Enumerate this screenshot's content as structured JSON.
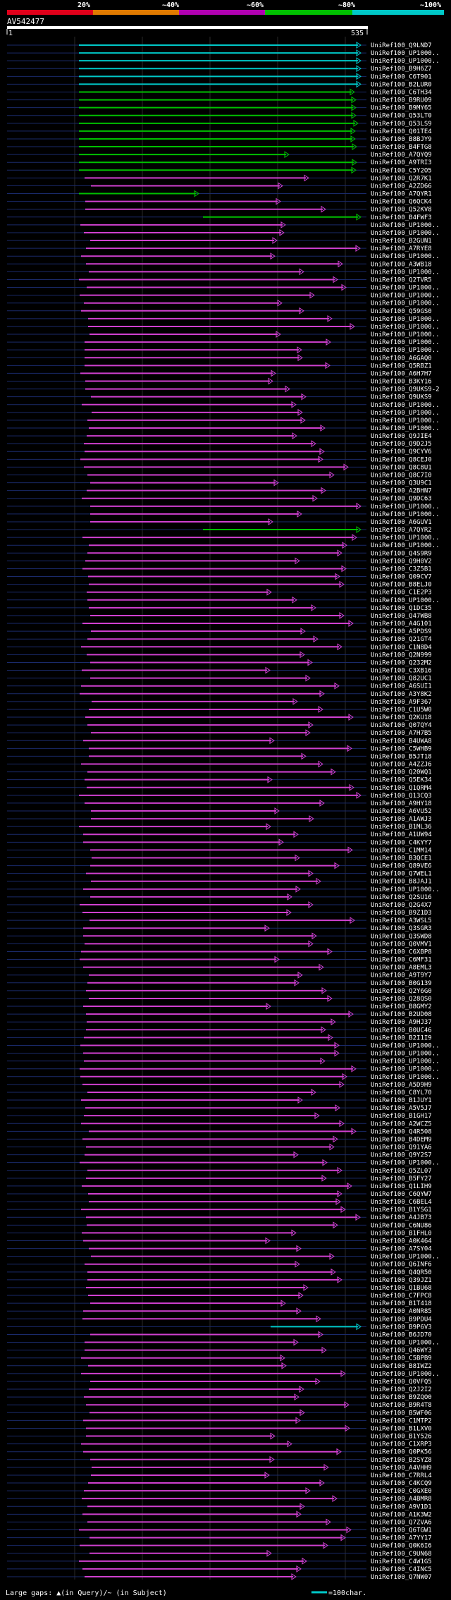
{
  "legend": {
    "thresholds": [
      "20%",
      "~40%",
      "~60%",
      "~80%",
      "~100%"
    ],
    "colors": [
      "#e0001a",
      "#e07a00",
      "#b000b0",
      "#00c000",
      "#00c8c8"
    ]
  },
  "query": {
    "id": "AV542477",
    "start": "1",
    "end": "535"
  },
  "footer": {
    "gaps_text": "Large gaps: ▲(in Query)/~ (in Subject)",
    "scale_text": "=100char."
  },
  "hit_colors": {
    "cyan": "#00c8c8",
    "green": "#00c000",
    "magenta": "#d040d0"
  },
  "hits": [
    {
      "label": "UniRef100_Q9LND7",
      "color": "cyan"
    },
    {
      "label": "UniRef100_UP1000..",
      "color": "cyan"
    },
    {
      "label": "UniRef100_UP1000..",
      "color": "cyan"
    },
    {
      "label": "UniRef100_B9H6Z7",
      "color": "cyan"
    },
    {
      "label": "UniRef100_C6T901",
      "color": "cyan"
    },
    {
      "label": "UniRef100_B2LUR0",
      "color": "cyan"
    },
    {
      "label": "UniRef100_C6TH34",
      "color": "green"
    },
    {
      "label": "UniRef100_B9RU09",
      "color": "green"
    },
    {
      "label": "UniRef100_B9MY65",
      "color": "green"
    },
    {
      "label": "UniRef100_Q53LT0",
      "color": "green"
    },
    {
      "label": "UniRef100_Q53LS9",
      "color": "green"
    },
    {
      "label": "UniRef100_Q01TE4",
      "color": "green"
    },
    {
      "label": "UniRef100_B8BJY9",
      "color": "green"
    },
    {
      "label": "UniRef100_B4FTG8",
      "color": "green"
    },
    {
      "label": "UniRef100_A7QYQ9",
      "color": "green"
    },
    {
      "label": "UniRef100_A9TRI3",
      "color": "green"
    },
    {
      "label": "UniRef100_C5Y2O5",
      "color": "green"
    },
    {
      "label": "UniRef100_Q2R7K1",
      "color": "magenta"
    },
    {
      "label": "UniRef100_A2ZD66",
      "color": "magenta"
    },
    {
      "label": "UniRef100_A7QYR1",
      "color": "green"
    },
    {
      "label": "UniRef100_Q6QCK4",
      "color": "magenta"
    },
    {
      "label": "UniRef100_Q52KV8",
      "color": "magenta"
    },
    {
      "label": "UniRef100_B4FWF3",
      "color": "green"
    },
    {
      "label": "UniRef100_UP1000..",
      "color": "magenta"
    },
    {
      "label": "UniRef100_UP1000..",
      "color": "magenta"
    },
    {
      "label": "UniRef100_B2GUN1",
      "color": "magenta"
    },
    {
      "label": "UniRef100_A7RYE8",
      "color": "magenta"
    },
    {
      "label": "UniRef100_UP1000..",
      "color": "magenta"
    },
    {
      "label": "UniRef100_A3WB18",
      "color": "magenta"
    },
    {
      "label": "UniRef100_UP1000..",
      "color": "magenta"
    },
    {
      "label": "UniRef100_Q2TVR5",
      "color": "magenta"
    },
    {
      "label": "UniRef100_UP1000..",
      "color": "magenta"
    },
    {
      "label": "UniRef100_UP1000..",
      "color": "magenta"
    },
    {
      "label": "UniRef100_UP1000..",
      "color": "magenta"
    },
    {
      "label": "UniRef100_Q59GS0",
      "color": "magenta"
    },
    {
      "label": "UniRef100_UP1000..",
      "color": "magenta"
    },
    {
      "label": "UniRef100_UP1000..",
      "color": "magenta"
    },
    {
      "label": "UniRef100_UP1000..",
      "color": "magenta"
    },
    {
      "label": "UniRef100_UP1000..",
      "color": "magenta"
    },
    {
      "label": "UniRef100_UP1000..",
      "color": "magenta"
    },
    {
      "label": "UniRef100_A6GAQ0",
      "color": "magenta"
    },
    {
      "label": "UniRef100_Q5RBZ1",
      "color": "magenta"
    },
    {
      "label": "UniRef100_A6H7H7",
      "color": "magenta"
    },
    {
      "label": "UniRef100_B3KY16",
      "color": "magenta"
    },
    {
      "label": "UniRef100_Q9UKS9-2",
      "color": "magenta"
    },
    {
      "label": "UniRef100_Q9UKS9",
      "color": "magenta"
    },
    {
      "label": "UniRef100_UP1000..",
      "color": "magenta"
    },
    {
      "label": "UniRef100_UP1000..",
      "color": "magenta"
    },
    {
      "label": "UniRef100_UP1000..",
      "color": "magenta"
    },
    {
      "label": "UniRef100_UP1000..",
      "color": "magenta"
    },
    {
      "label": "UniRef100_Q9JIE4",
      "color": "magenta"
    },
    {
      "label": "UniRef100_Q9D2J5",
      "color": "magenta"
    },
    {
      "label": "UniRef100_Q9CYV6",
      "color": "magenta"
    },
    {
      "label": "UniRef100_Q8CEJ0",
      "color": "magenta"
    },
    {
      "label": "UniRef100_Q8C8U1",
      "color": "magenta"
    },
    {
      "label": "UniRef100_Q8C7I0",
      "color": "magenta"
    },
    {
      "label": "UniRef100_Q3U9C1",
      "color": "magenta"
    },
    {
      "label": "UniRef100_A2BHN7",
      "color": "magenta"
    },
    {
      "label": "UniRef100_Q9DC63",
      "color": "magenta"
    },
    {
      "label": "UniRef100_UP1000..",
      "color": "magenta"
    },
    {
      "label": "UniRef100_UP1000..",
      "color": "magenta"
    },
    {
      "label": "UniRef100_A6GUV1",
      "color": "magenta"
    },
    {
      "label": "UniRef100_A7QYR2",
      "color": "green"
    },
    {
      "label": "UniRef100_UP1000..",
      "color": "magenta"
    },
    {
      "label": "UniRef100_UP1000..",
      "color": "magenta"
    },
    {
      "label": "UniRef100_Q4S9R9",
      "color": "magenta"
    },
    {
      "label": "UniRef100_Q9H0V2",
      "color": "magenta"
    },
    {
      "label": "UniRef100_C3Z5B1",
      "color": "magenta"
    },
    {
      "label": "UniRef100_Q09CV7",
      "color": "magenta"
    },
    {
      "label": "UniRef100_B8ELJ0",
      "color": "magenta"
    },
    {
      "label": "UniRef100_C1E2P3",
      "color": "magenta"
    },
    {
      "label": "UniRef100_UP1000..",
      "color": "magenta"
    },
    {
      "label": "UniRef100_Q1DC35",
      "color": "magenta"
    },
    {
      "label": "UniRef100_Q47WB8",
      "color": "magenta"
    },
    {
      "label": "UniRef100_A4G101",
      "color": "magenta"
    },
    {
      "label": "UniRef100_A5PDS9",
      "color": "magenta"
    },
    {
      "label": "UniRef100_Q21GT4",
      "color": "magenta"
    },
    {
      "label": "UniRef100_C1N8D4",
      "color": "magenta"
    },
    {
      "label": "UniRef100_Q2N999",
      "color": "magenta"
    },
    {
      "label": "UniRef100_Q232M2",
      "color": "magenta"
    },
    {
      "label": "UniRef100_C3XB16",
      "color": "magenta"
    },
    {
      "label": "UniRef100_Q82UC1",
      "color": "magenta"
    },
    {
      "label": "UniRef100_A6SUI1",
      "color": "magenta"
    },
    {
      "label": "UniRef100_A3Y8K2",
      "color": "magenta"
    },
    {
      "label": "UniRef100_A9F367",
      "color": "magenta"
    },
    {
      "label": "UniRef100_C1U5W0",
      "color": "magenta"
    },
    {
      "label": "UniRef100_Q2KU18",
      "color": "magenta"
    },
    {
      "label": "UniRef100_Q07QY4",
      "color": "magenta"
    },
    {
      "label": "UniRef100_A7H7B5",
      "color": "magenta"
    },
    {
      "label": "UniRef100_B4UWA8",
      "color": "magenta"
    },
    {
      "label": "UniRef100_C5WHB9",
      "color": "magenta"
    },
    {
      "label": "UniRef100_B5JT18",
      "color": "magenta"
    },
    {
      "label": "UniRef100_A4ZZJ6",
      "color": "magenta"
    },
    {
      "label": "UniRef100_Q20WQ1",
      "color": "magenta"
    },
    {
      "label": "UniRef100_Q5EK34",
      "color": "magenta"
    },
    {
      "label": "UniRef100_Q1QRM4",
      "color": "magenta"
    },
    {
      "label": "UniRef100_Q13CQ3",
      "color": "magenta"
    },
    {
      "label": "UniRef100_A9HY18",
      "color": "magenta"
    },
    {
      "label": "UniRef100_A6VU52",
      "color": "magenta"
    },
    {
      "label": "UniRef100_A1AWJ3",
      "color": "magenta"
    },
    {
      "label": "UniRef100_B1ML36",
      "color": "magenta"
    },
    {
      "label": "UniRef100_A1UW94",
      "color": "magenta"
    },
    {
      "label": "UniRef100_C4KYY7",
      "color": "magenta"
    },
    {
      "label": "UniRef100_C1MM14",
      "color": "magenta"
    },
    {
      "label": "UniRef100_B3QCE1",
      "color": "magenta"
    },
    {
      "label": "UniRef100_Q89VE6",
      "color": "magenta"
    },
    {
      "label": "UniRef100_Q7WEL1",
      "color": "magenta"
    },
    {
      "label": "UniRef100_B8JAJ1",
      "color": "magenta"
    },
    {
      "label": "UniRef100_UP1000..",
      "color": "magenta"
    },
    {
      "label": "UniRef100_Q2SU16",
      "color": "magenta"
    },
    {
      "label": "UniRef100_Q2G4X7",
      "color": "magenta"
    },
    {
      "label": "UniRef100_B9Z1D3",
      "color": "magenta"
    },
    {
      "label": "UniRef100_A3WSL5",
      "color": "magenta"
    },
    {
      "label": "UniRef100_Q3SGR3",
      "color": "magenta"
    },
    {
      "label": "UniRef100_Q3SWD8",
      "color": "magenta"
    },
    {
      "label": "UniRef100_Q0VMV1",
      "color": "magenta"
    },
    {
      "label": "UniRef100_C6XBP8",
      "color": "magenta"
    },
    {
      "label": "UniRef100_C6MF31",
      "color": "magenta"
    },
    {
      "label": "UniRef100_A8EML3",
      "color": "magenta"
    },
    {
      "label": "UniRef100_A9T9Y7",
      "color": "magenta"
    },
    {
      "label": "UniRef100_B0G139",
      "color": "magenta"
    },
    {
      "label": "UniRef100_Q2Y6G0",
      "color": "magenta"
    },
    {
      "label": "UniRef100_Q28QS0",
      "color": "magenta"
    },
    {
      "label": "UniRef100_B8GMY2",
      "color": "magenta"
    },
    {
      "label": "UniRef100_B2UD08",
      "color": "magenta"
    },
    {
      "label": "UniRef100_A9HJ37",
      "color": "magenta"
    },
    {
      "label": "UniRef100_B0UC46",
      "color": "magenta"
    },
    {
      "label": "UniRef100_B2I1I9",
      "color": "magenta"
    },
    {
      "label": "UniRef100_UP1000..",
      "color": "magenta"
    },
    {
      "label": "UniRef100_UP1000..",
      "color": "magenta"
    },
    {
      "label": "UniRef100_UP1000..",
      "color": "magenta"
    },
    {
      "label": "UniRef100_UP1000..",
      "color": "magenta"
    },
    {
      "label": "UniRef100_UP1000..",
      "color": "magenta"
    },
    {
      "label": "UniRef100_A5D9H9",
      "color": "magenta"
    },
    {
      "label": "UniRef100_C8YL70",
      "color": "magenta"
    },
    {
      "label": "UniRef100_B1JUY1",
      "color": "magenta"
    },
    {
      "label": "UniRef100_A5V5J7",
      "color": "magenta"
    },
    {
      "label": "UniRef100_B1GH17",
      "color": "magenta"
    },
    {
      "label": "UniRef100_A2WCZ5",
      "color": "magenta"
    },
    {
      "label": "UniRef100_Q4R508",
      "color": "magenta"
    },
    {
      "label": "UniRef100_B4DEM9",
      "color": "magenta"
    },
    {
      "label": "UniRef100_Q91YA6",
      "color": "magenta"
    },
    {
      "label": "UniRef100_Q9Y2S7",
      "color": "magenta"
    },
    {
      "label": "UniRef100_UP1000..",
      "color": "magenta"
    },
    {
      "label": "UniRef100_Q5ZL07",
      "color": "magenta"
    },
    {
      "label": "UniRef100_B5FY27",
      "color": "magenta"
    },
    {
      "label": "UniRef100_Q1LIH9",
      "color": "magenta"
    },
    {
      "label": "UniRef100_C6QYW7",
      "color": "magenta"
    },
    {
      "label": "UniRef100_C6BEL4",
      "color": "magenta"
    },
    {
      "label": "UniRef100_B1YSG1",
      "color": "magenta"
    },
    {
      "label": "UniRef100_A4JB73",
      "color": "magenta"
    },
    {
      "label": "UniRef100_C6NU86",
      "color": "magenta"
    },
    {
      "label": "UniRef100_B1FHL0",
      "color": "magenta"
    },
    {
      "label": "UniRef100_A0K464",
      "color": "magenta"
    },
    {
      "label": "UniRef100_A7SY04",
      "color": "magenta"
    },
    {
      "label": "UniRef100_UP1000..",
      "color": "magenta"
    },
    {
      "label": "UniRef100_Q6INF6",
      "color": "magenta"
    },
    {
      "label": "UniRef100_Q4QR50",
      "color": "magenta"
    },
    {
      "label": "UniRef100_Q39JZ1",
      "color": "magenta"
    },
    {
      "label": "UniRef100_Q1BU68",
      "color": "magenta"
    },
    {
      "label": "UniRef100_C7FPC8",
      "color": "magenta"
    },
    {
      "label": "UniRef100_B1T418",
      "color": "magenta"
    },
    {
      "label": "UniRef100_A0NR85",
      "color": "magenta"
    },
    {
      "label": "UniRef100_B9PDU4",
      "color": "magenta"
    },
    {
      "label": "UniRef100_B9P6V3",
      "color": "cyan"
    },
    {
      "label": "UniRef100_B6JD70",
      "color": "magenta"
    },
    {
      "label": "UniRef100_UP1000..",
      "color": "magenta"
    },
    {
      "label": "UniRef100_Q46WY3",
      "color": "magenta"
    },
    {
      "label": "UniRef100_C5BPB9",
      "color": "magenta"
    },
    {
      "label": "UniRef100_B8IWZ2",
      "color": "magenta"
    },
    {
      "label": "UniRef100_UP1000..",
      "color": "magenta"
    },
    {
      "label": "UniRef100_Q0VFQ5",
      "color": "magenta"
    },
    {
      "label": "UniRef100_Q2J2I2",
      "color": "magenta"
    },
    {
      "label": "UniRef100_B9ZQO0",
      "color": "magenta"
    },
    {
      "label": "UniRef100_B9R4T8",
      "color": "magenta"
    },
    {
      "label": "UniRef100_B5WF06",
      "color": "magenta"
    },
    {
      "label": "UniRef100_C1MTP2",
      "color": "magenta"
    },
    {
      "label": "UniRef100_B1LXV0",
      "color": "magenta"
    },
    {
      "label": "UniRef100_B1Y526",
      "color": "magenta"
    },
    {
      "label": "UniRef100_C1XRP3",
      "color": "magenta"
    },
    {
      "label": "UniRef100_Q0PK56",
      "color": "magenta"
    },
    {
      "label": "UniRef100_B2SYZ8",
      "color": "magenta"
    },
    {
      "label": "UniRef100_A4VHH9",
      "color": "magenta"
    },
    {
      "label": "UniRef100_C7RRL4",
      "color": "magenta"
    },
    {
      "label": "UniRef100_C4KCQ9",
      "color": "magenta"
    },
    {
      "label": "UniRef100_C0GXE0",
      "color": "magenta"
    },
    {
      "label": "UniRef100_A4BMR8",
      "color": "magenta"
    },
    {
      "label": "UniRef100_A9V1D1",
      "color": "magenta"
    },
    {
      "label": "UniRef100_A1K3W2",
      "color": "magenta"
    },
    {
      "label": "UniRef100_Q7ZVA6",
      "color": "magenta"
    },
    {
      "label": "UniRef100_Q6TGW1",
      "color": "magenta"
    },
    {
      "label": "UniRef100_A7YY17",
      "color": "magenta"
    },
    {
      "label": "UniRef100_Q0K6I6",
      "color": "magenta"
    },
    {
      "label": "UniRef100_C9UN68",
      "color": "magenta"
    },
    {
      "label": "UniRef100_C4W1G5",
      "color": "magenta"
    },
    {
      "label": "UniRef100_C4INC5",
      "color": "magenta"
    },
    {
      "label": "UniRef100_Q7NW07",
      "color": "magenta"
    }
  ]
}
